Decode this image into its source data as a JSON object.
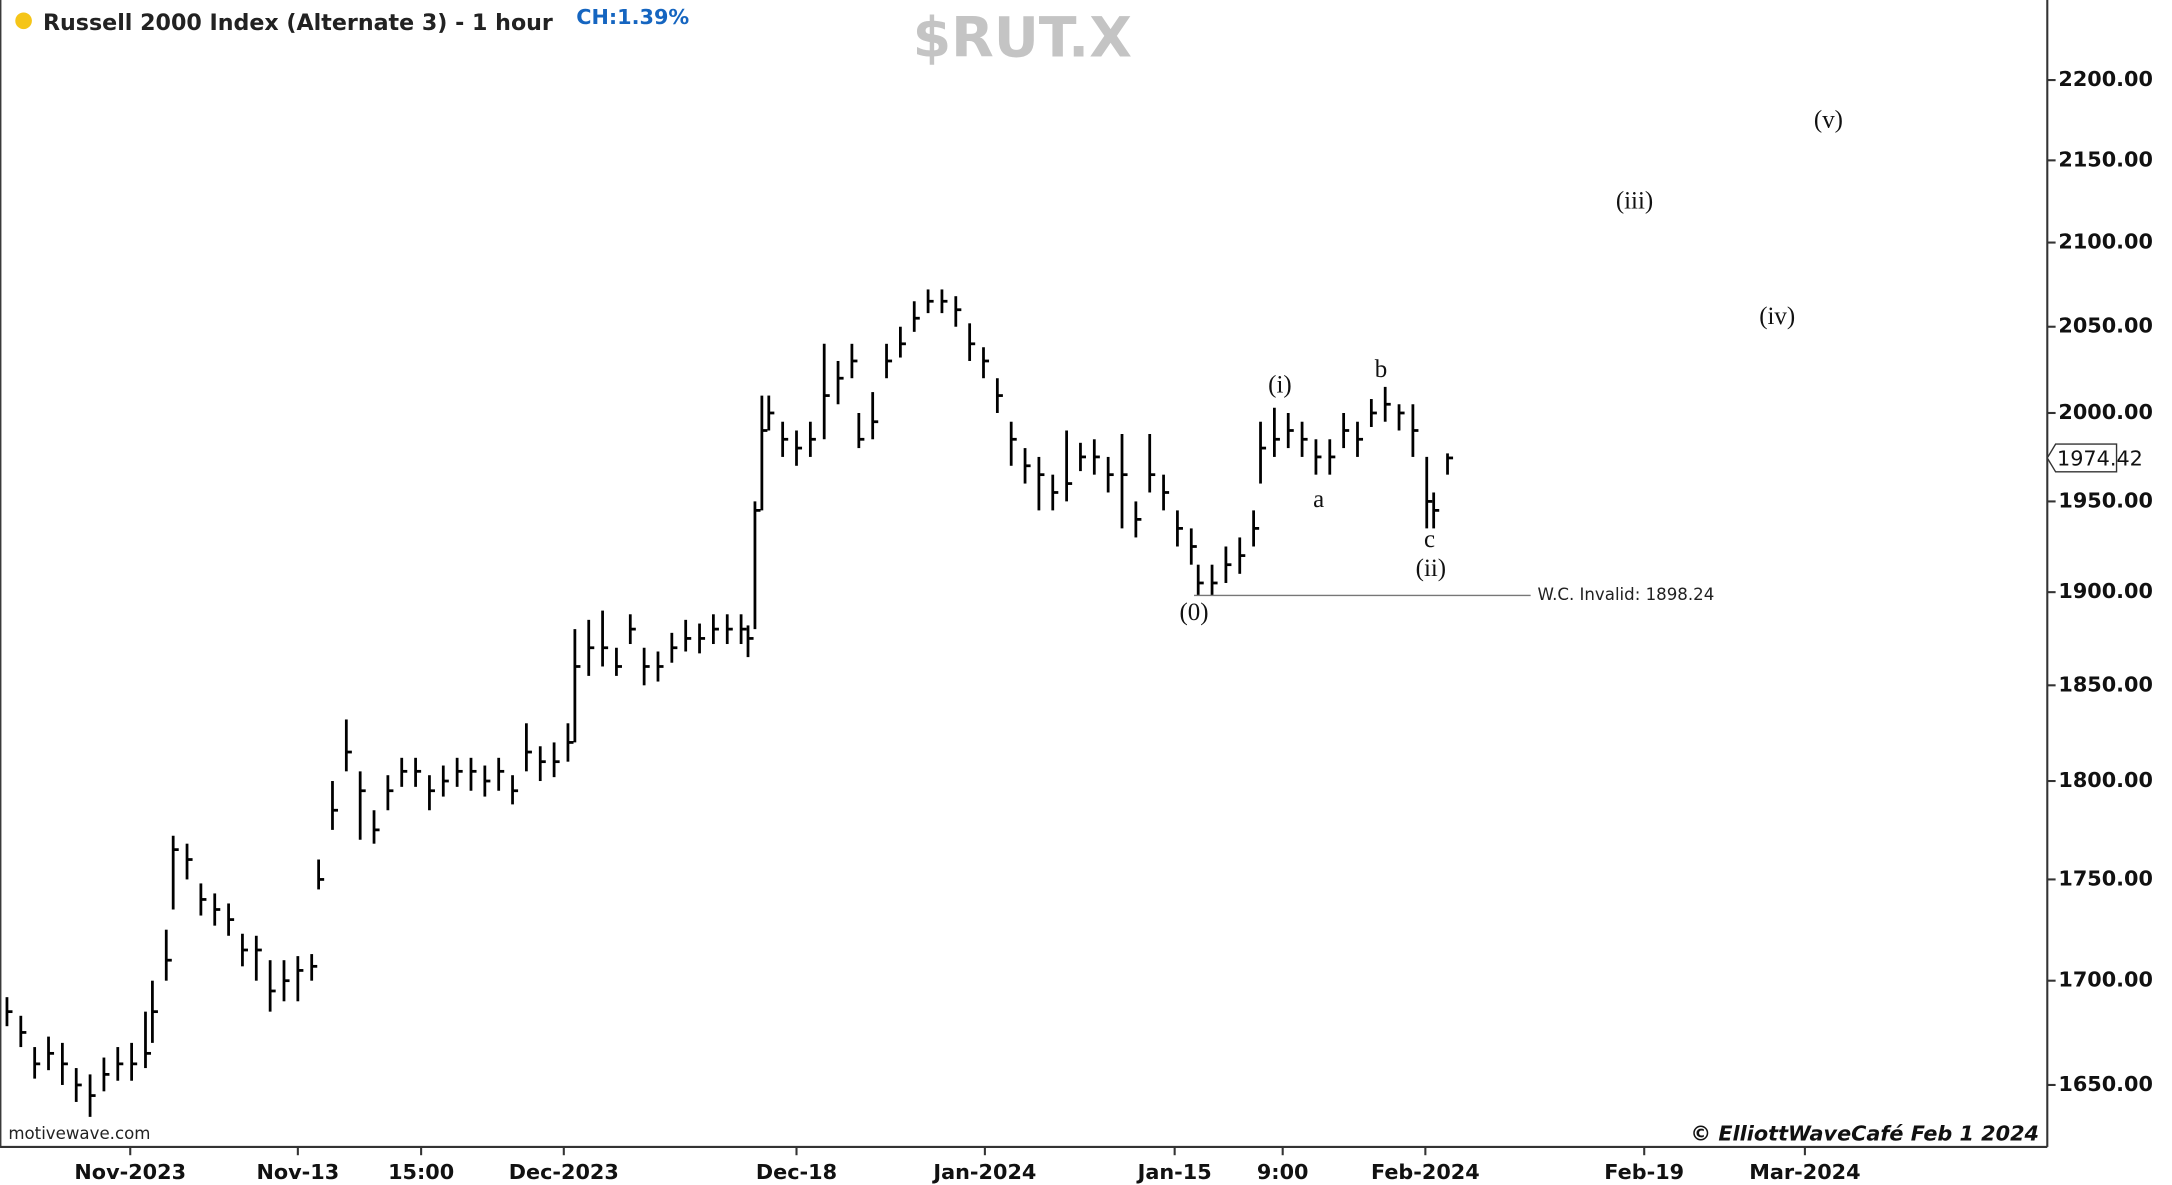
{
  "chart_data": {
    "type": "ohlc",
    "title": "Russell 2000 Index (Alternate 3) - 1 hour",
    "change": "CH:1.39%",
    "symbol": "$RUT.X",
    "source": "motivewave.com",
    "copyright": "© ElliottWaveCafé Feb 1  2024",
    "log": true,
    "color": "#000000",
    "xlim": [
      0,
      295.6
    ],
    "xticks": [
      {
        "value": 18.8,
        "label": "Nov-2023"
      },
      {
        "value": 43,
        "label": "Nov-13"
      },
      {
        "value": 60.8,
        "label": "15:00"
      },
      {
        "value": 81.4,
        "label": "Dec-2023"
      },
      {
        "value": 115,
        "label": "Dec-18"
      },
      {
        "value": 142.2,
        "label": "Jan-2024"
      },
      {
        "value": 169.6,
        "label": "Jan-15"
      },
      {
        "value": 185.2,
        "label": "9:00"
      },
      {
        "value": 205.8,
        "label": "Feb-2024"
      },
      {
        "value": 237.4,
        "label": "Feb-19"
      },
      {
        "value": 260.6,
        "label": "Mar-2024"
      }
    ],
    "ylim": [
      1621,
      2251
    ],
    "yticks": [
      {
        "value": 1650,
        "label": "1650.00"
      },
      {
        "value": 1700,
        "label": "1700.00"
      },
      {
        "value": 1750,
        "label": "1750.00"
      },
      {
        "value": 1800,
        "label": "1800.00"
      },
      {
        "value": 1850,
        "label": "1850.00"
      },
      {
        "value": 1900,
        "label": "1900.00"
      },
      {
        "value": 1950,
        "label": "1950.00"
      },
      {
        "value": 2000,
        "label": "2000.00"
      },
      {
        "value": 2050,
        "label": "2050.00"
      },
      {
        "value": 2100,
        "label": "2100.00"
      },
      {
        "value": 2150,
        "label": "2150.00"
      },
      {
        "value": 2200,
        "label": "2200.00"
      }
    ],
    "x": [
      1,
      3,
      5,
      7,
      9,
      11,
      13,
      15,
      17,
      19,
      21,
      22,
      24,
      25,
      27,
      29,
      31,
      33,
      35,
      37,
      39,
      41,
      43,
      45,
      46,
      48,
      50,
      52,
      54,
      56,
      58,
      60,
      62,
      64,
      66,
      68,
      70,
      72,
      74,
      76,
      78,
      80,
      82,
      83,
      85,
      87,
      89,
      91,
      93,
      95,
      97,
      99,
      101,
      103,
      105,
      107,
      108,
      109,
      110,
      111,
      113,
      115,
      117,
      119,
      121,
      123,
      124,
      126,
      128,
      130,
      132,
      134,
      136,
      138,
      140,
      142,
      144,
      146,
      148,
      150,
      152,
      154,
      156,
      158,
      160,
      162,
      164,
      166,
      168,
      170,
      172,
      173,
      175,
      177,
      179,
      181,
      182,
      184,
      186,
      188,
      190,
      192,
      194,
      196,
      198,
      200,
      202,
      204,
      206,
      207,
      209
    ],
    "high": [
      1692,
      1683,
      1668,
      1673,
      1670,
      1658,
      1655,
      1663,
      1668,
      1670,
      1685,
      1700,
      1725,
      1772,
      1768,
      1748,
      1743,
      1738,
      1723,
      1722,
      1710,
      1710,
      1712,
      1713,
      1760,
      1800,
      1832,
      1805,
      1785,
      1803,
      1812,
      1812,
      1803,
      1808,
      1812,
      1812,
      1808,
      1812,
      1803,
      1830,
      1818,
      1820,
      1830,
      1880,
      1885,
      1890,
      1870,
      1888,
      1870,
      1868,
      1878,
      1885,
      1883,
      1888,
      1888,
      1888,
      1882,
      1950,
      2010,
      2010,
      1995,
      1990,
      1995,
      2040,
      2030,
      2040,
      2000,
      2012,
      2040,
      2050,
      2065,
      2072,
      2072,
      2068,
      2052,
      2038,
      2020,
      1995,
      1980,
      1975,
      1965,
      1990,
      1983,
      1985,
      1975,
      1988,
      1950,
      1988,
      1965,
      1945,
      1935,
      1915,
      1915,
      1925,
      1930,
      1945,
      1995,
      2003,
      2000,
      1995,
      1985,
      1985,
      2000,
      1995,
      2008,
      2015,
      2005,
      2005,
      1975,
      1955,
      1977
    ],
    "low": [
      1678,
      1668,
      1653,
      1657,
      1650,
      1642,
      1635,
      1647,
      1652,
      1652,
      1658,
      1670,
      1700,
      1735,
      1750,
      1732,
      1727,
      1722,
      1707,
      1700,
      1685,
      1690,
      1690,
      1700,
      1745,
      1775,
      1805,
      1770,
      1768,
      1785,
      1797,
      1797,
      1785,
      1792,
      1797,
      1795,
      1792,
      1795,
      1788,
      1805,
      1800,
      1802,
      1810,
      1820,
      1855,
      1860,
      1855,
      1872,
      1850,
      1852,
      1862,
      1868,
      1867,
      1872,
      1872,
      1872,
      1865,
      1880,
      1945,
      1990,
      1975,
      1970,
      1975,
      1985,
      2005,
      2020,
      1980,
      1985,
      2020,
      2032,
      2047,
      2058,
      2058,
      2050,
      2030,
      2020,
      2000,
      1970,
      1960,
      1945,
      1945,
      1950,
      1967,
      1965,
      1955,
      1935,
      1930,
      1955,
      1945,
      1925,
      1915,
      1898,
      1898,
      1905,
      1910,
      1925,
      1960,
      1975,
      1980,
      1975,
      1965,
      1965,
      1980,
      1975,
      1992,
      1995,
      1990,
      1975,
      1935,
      1935,
      1965
    ],
    "close": [
      1685,
      1675,
      1660,
      1665,
      1660,
      1650,
      1645,
      1655,
      1660,
      1660,
      1665,
      1685,
      1710,
      1765,
      1760,
      1740,
      1735,
      1730,
      1715,
      1715,
      1695,
      1700,
      1705,
      1707,
      1750,
      1785,
      1815,
      1795,
      1775,
      1795,
      1805,
      1805,
      1795,
      1800,
      1805,
      1805,
      1800,
      1805,
      1795,
      1815,
      1810,
      1810,
      1820,
      1860,
      1870,
      1870,
      1860,
      1880,
      1860,
      1860,
      1870,
      1875,
      1875,
      1880,
      1880,
      1880,
      1875,
      1945,
      1990,
      2000,
      1985,
      1980,
      1985,
      2010,
      2020,
      2030,
      1985,
      1995,
      2030,
      2040,
      2055,
      2065,
      2065,
      2060,
      2040,
      2030,
      2010,
      1985,
      1970,
      1965,
      1955,
      1960,
      1975,
      1975,
      1965,
      1965,
      1940,
      1965,
      1955,
      1935,
      1925,
      1905,
      1905,
      1915,
      1920,
      1935,
      1980,
      1985,
      1990,
      1985,
      1975,
      1975,
      1990,
      1985,
      2000,
      2005,
      2000,
      1990,
      1950,
      1945,
      1974.42
    ],
    "last_price": 1974.42,
    "annotations": [
      {
        "text": "(0)",
        "x": 172.4,
        "y": 1888
      },
      {
        "text": "(i)",
        "x": 184.8,
        "y": 2015
      },
      {
        "text": "a",
        "x": 190.4,
        "y": 1950
      },
      {
        "text": "b",
        "x": 199.4,
        "y": 2024
      },
      {
        "text": "c",
        "x": 206.4,
        "y": 1928
      },
      {
        "text": "(ii)",
        "x": 206.6,
        "y": 1912
      },
      {
        "text": "(iii)",
        "x": 236,
        "y": 2124
      },
      {
        "text": "(iv)",
        "x": 256.6,
        "y": 2055
      },
      {
        "text": "(v)",
        "x": 264,
        "y": 2174
      }
    ],
    "invalidation": {
      "value": 1898.24,
      "label": "W.C. Invalid: 1898.24",
      "x": [
        172.4,
        221
      ]
    }
  }
}
